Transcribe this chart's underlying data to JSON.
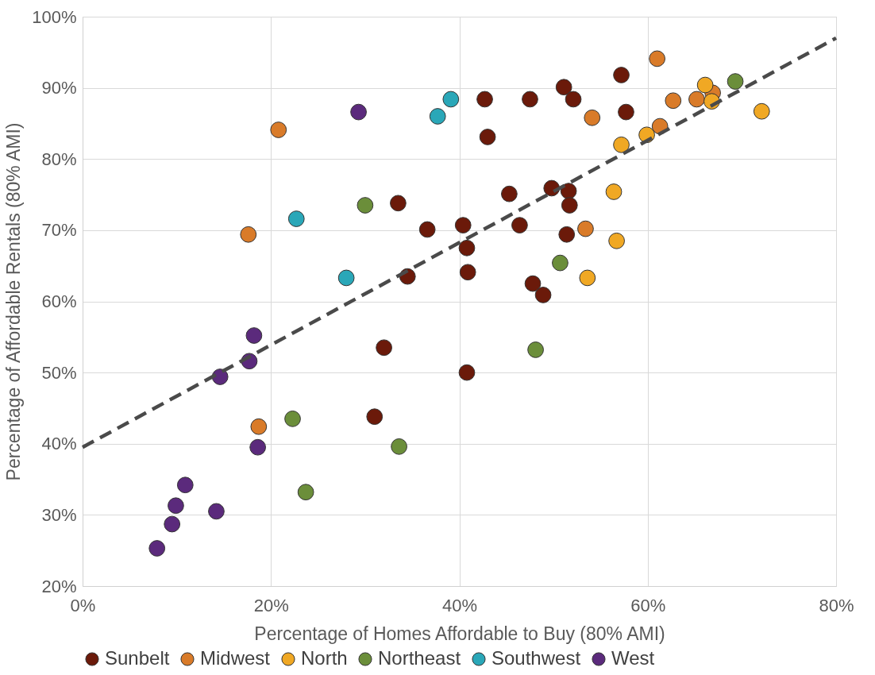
{
  "chart_data": {
    "type": "scatter",
    "xlabel": "Percentage of Homes Affordable to Buy (80% AMI)",
    "ylabel": "Percentage of Affordable Rentals (80% AMI)",
    "xlim": [
      0,
      80
    ],
    "xticks": [
      {
        "value": 0,
        "label": "0%"
      },
      {
        "value": 20,
        "label": "20%"
      },
      {
        "value": 40,
        "label": "40%"
      },
      {
        "value": 60,
        "label": "60%"
      },
      {
        "value": 80,
        "label": "80%"
      }
    ],
    "ylim": [
      20,
      100
    ],
    "yticks": [
      {
        "value": 20,
        "label": "20%"
      },
      {
        "value": 30,
        "label": "30%"
      },
      {
        "value": 40,
        "label": "40%"
      },
      {
        "value": 50,
        "label": "50%"
      },
      {
        "value": 60,
        "label": "60%"
      },
      {
        "value": 70,
        "label": "70%"
      },
      {
        "value": 80,
        "label": "80%"
      },
      {
        "value": 90,
        "label": "90%"
      },
      {
        "value": 100,
        "label": "100%"
      }
    ],
    "grid": true,
    "legend": "bottom",
    "marker": "circle",
    "series": [
      {
        "name": "Sunbelt",
        "color": "#6b1a0a",
        "x": [
          51.1,
          57.2,
          42.7,
          47.5,
          52.1,
          57.7,
          43.0,
          49.8,
          51.6,
          45.3,
          51.7,
          33.5,
          36.6,
          40.4,
          46.4,
          51.4,
          40.8,
          34.5,
          40.9,
          47.8,
          48.9,
          32.0,
          40.8,
          31.0
        ],
        "values": [
          90.1,
          91.8,
          88.4,
          88.4,
          88.4,
          86.6,
          83.1,
          75.9,
          75.5,
          75.1,
          73.5,
          73.8,
          70.1,
          70.7,
          70.7,
          69.4,
          67.5,
          63.5,
          64.1,
          62.5,
          60.9,
          53.5,
          50.0,
          43.8
        ]
      },
      {
        "name": "Midwest",
        "color": "#d97b29",
        "x": [
          61.0,
          20.8,
          54.1,
          62.7,
          65.2,
          66.9,
          61.3,
          53.4,
          17.6,
          18.7
        ],
        "values": [
          94.1,
          84.1,
          85.8,
          88.2,
          88.4,
          89.3,
          84.6,
          70.2,
          69.4,
          42.4
        ]
      },
      {
        "name": "North",
        "color": "#f0a824",
        "x": [
          66.1,
          66.8,
          72.1,
          59.9,
          57.2,
          56.4,
          56.7,
          53.6
        ],
        "values": [
          90.4,
          88.1,
          86.7,
          83.4,
          82.0,
          75.4,
          68.5,
          63.3
        ]
      },
      {
        "name": "Northeast",
        "color": "#6b8e3a",
        "x": [
          69.3,
          30.0,
          50.7,
          48.1,
          22.3,
          33.6,
          23.7
        ],
        "values": [
          90.9,
          73.5,
          65.4,
          53.2,
          43.5,
          39.6,
          33.2
        ]
      },
      {
        "name": "Southwest",
        "color": "#2aa7b8",
        "x": [
          39.1,
          37.7,
          22.7,
          28.0
        ],
        "values": [
          88.4,
          86.0,
          71.6,
          63.3
        ]
      },
      {
        "name": "West",
        "color": "#5b2a7c",
        "x": [
          29.3,
          18.2,
          17.7,
          14.6,
          18.6,
          10.9,
          9.9,
          14.2,
          9.5,
          7.9
        ],
        "values": [
          86.6,
          55.2,
          51.6,
          49.4,
          39.5,
          34.2,
          31.3,
          30.5,
          28.7,
          25.3
        ]
      },
      {
        "type": "line",
        "color": "#4a4a4a",
        "line_style": "dashed",
        "marker": "none",
        "x": [
          0,
          80
        ],
        "values": [
          39.5,
          97.0
        ]
      }
    ]
  }
}
